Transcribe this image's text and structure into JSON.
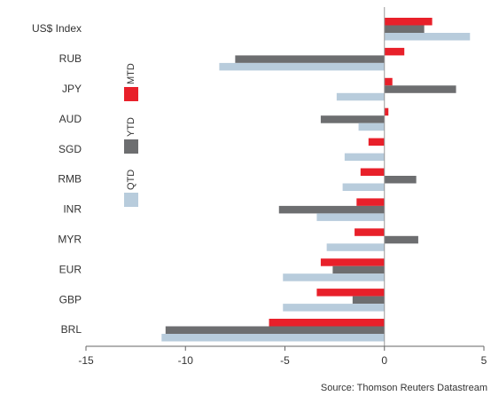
{
  "chart_data": {
    "type": "hbar",
    "categories": [
      "US$ Index",
      "RUB",
      "JPY",
      "AUD",
      "SGD",
      "RMB",
      "INR",
      "MYR",
      "EUR",
      "GBP",
      "BRL"
    ],
    "series": [
      {
        "name": "MTD",
        "color": "#e8202a",
        "values": [
          2.4,
          1.0,
          0.4,
          0.2,
          -0.8,
          -1.2,
          -1.4,
          -1.5,
          -3.2,
          -3.4,
          -5.8
        ]
      },
      {
        "name": "YTD",
        "color": "#6d6e70",
        "values": [
          2.0,
          -7.5,
          3.6,
          -3.2,
          0,
          1.6,
          -5.3,
          1.7,
          -2.6,
          -1.6,
          -11.0
        ]
      },
      {
        "name": "QTD",
        "color": "#b8ccdc",
        "values": [
          4.3,
          -8.3,
          -2.4,
          -1.3,
          -2.0,
          -2.1,
          -3.4,
          -2.9,
          -5.1,
          -5.1,
          -11.2
        ]
      }
    ],
    "xlim": [
      -15,
      5
    ],
    "xticks": [
      -15,
      -10,
      -5,
      0,
      5
    ],
    "source": "Source: Thomson Reuters Datastream"
  }
}
